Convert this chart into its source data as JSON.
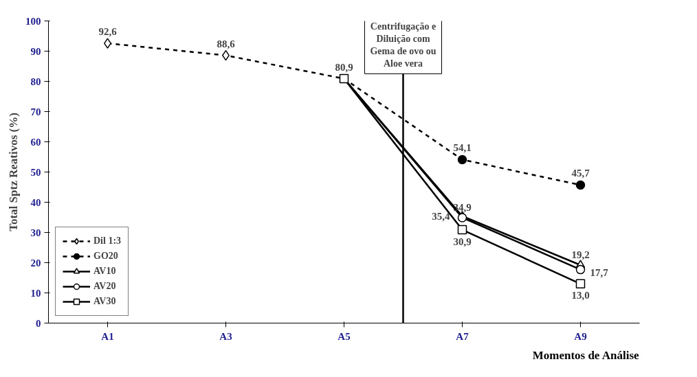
{
  "chart_data": {
    "type": "line",
    "xlabel": "Momentos de Análise",
    "ylabel": "Total Sptz Reativos (%)",
    "categories": [
      "A1",
      "A3",
      "A5",
      "A7",
      "A9"
    ],
    "ylim": [
      0,
      100
    ],
    "yticks": [
      0,
      10,
      20,
      30,
      40,
      50,
      60,
      70,
      80,
      90,
      100
    ],
    "grid": false,
    "legend": "bottom left",
    "annotations": [
      "Centrifugação e Diluição com Gema de ovo ou Aloe vera"
    ],
    "series": [
      {
        "name": "Dil 1:3",
        "color": "#000000",
        "marker": "diamond",
        "line_style": "dashed",
        "values": [
          92.6,
          88.6,
          80.9,
          null,
          null
        ],
        "value_labels": [
          "92,6",
          "88,6",
          "80,9",
          null,
          null
        ]
      },
      {
        "name": "GO20",
        "color": "#000000",
        "marker": "circle",
        "line_style": "dashed",
        "values": [
          null,
          null,
          80.9,
          54.1,
          45.7
        ],
        "value_labels": [
          null,
          null,
          null,
          "54,1",
          "45,7"
        ]
      },
      {
        "name": "AV10",
        "color": "#000000",
        "marker": "triangle",
        "line_style": "solid",
        "values": [
          null,
          null,
          80.9,
          35.4,
          19.2
        ],
        "value_labels": [
          null,
          null,
          null,
          "35,4",
          "19,2"
        ]
      },
      {
        "name": "AV20",
        "color": "#000000",
        "marker": "circle",
        "line_style": "solid",
        "values": [
          null,
          null,
          80.9,
          34.9,
          17.7
        ],
        "value_labels": [
          null,
          null,
          null,
          "34,9",
          "17,7"
        ]
      },
      {
        "name": "AV30",
        "color": "#000000",
        "marker": "square",
        "line_style": "solid",
        "values": [
          null,
          null,
          80.9,
          30.9,
          13.0
        ],
        "value_labels": [
          null,
          null,
          null,
          "30,9",
          "13,0"
        ]
      }
    ]
  }
}
